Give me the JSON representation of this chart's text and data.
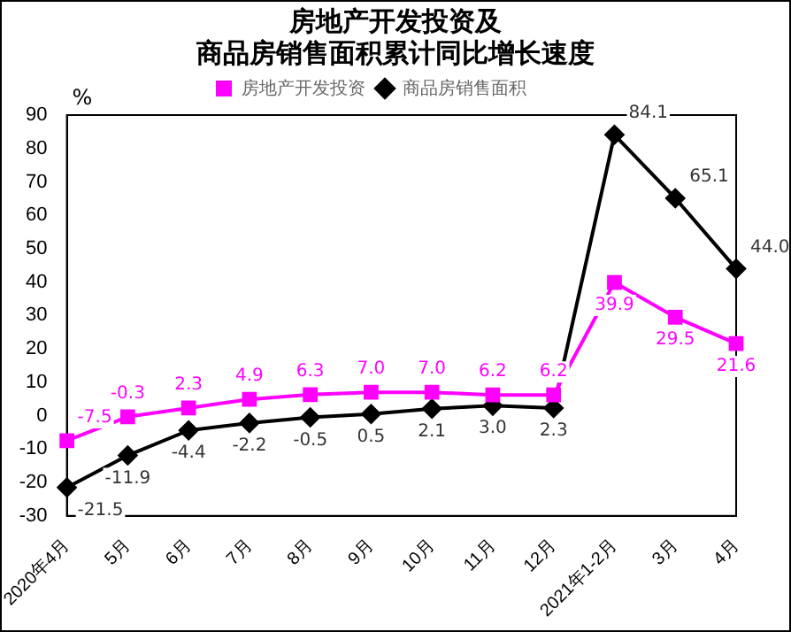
{
  "chart_data": {
    "type": "line",
    "title": "房地产开发投资及",
    "subtitle": "商品房销售面积累计同比增长速度",
    "ylabel": "%",
    "categories": [
      "2020年4月",
      "5月",
      "6月",
      "7月",
      "8月",
      "9月",
      "10月",
      "11月",
      "12月",
      "2021年1-2月",
      "3月",
      "4月"
    ],
    "series": [
      {
        "name": "房地产开发投资",
        "color": "#ff00ff",
        "marker": "square",
        "values": [
          -7.5,
          -0.3,
          2.3,
          4.9,
          6.3,
          7.0,
          7.0,
          6.2,
          6.2,
          39.9,
          29.5,
          21.6
        ],
        "value_labels": [
          "-7.5",
          "-0.3",
          "2.3",
          "4.9",
          "6.3",
          "7.0",
          "7.0",
          "6.2",
          "6.2",
          "39.9",
          "29.5",
          "21.6"
        ]
      },
      {
        "name": "商品房销售面积",
        "color": "#000000",
        "marker": "diamond",
        "values": [
          -21.5,
          -11.9,
          -4.4,
          -2.2,
          -0.5,
          0.5,
          2.1,
          3.0,
          2.3,
          84.1,
          65.1,
          44.0
        ],
        "value_labels": [
          "-21.5",
          "-11.9",
          "-4.4",
          "-2.2",
          "-0.5",
          "0.5",
          "2.1",
          "3.0",
          "2.3",
          "84.1",
          "65.1",
          "44.0"
        ]
      }
    ],
    "ylim": [
      -30,
      90
    ],
    "yticks": [
      -30,
      -20,
      -10,
      0,
      10,
      20,
      30,
      40,
      50,
      60,
      70,
      80,
      90
    ],
    "grid": false,
    "legend": "top",
    "line_style": "solid"
  }
}
